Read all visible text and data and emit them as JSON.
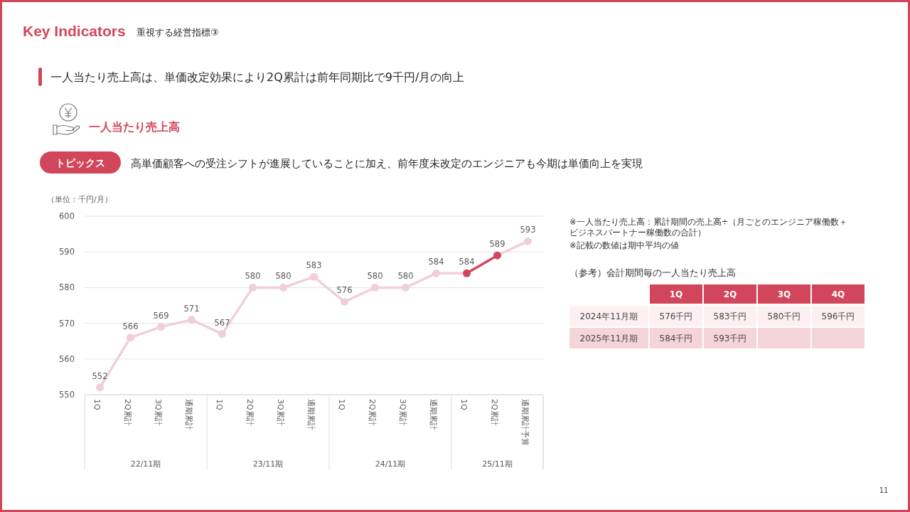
{
  "chart_data": [
    {
      "type": "line",
      "title": "一人当たり売上高",
      "ylabel": "（単位：千円/月）",
      "categories": [
        "1Q",
        "2Q累計",
        "3Q累計",
        "通期累計",
        "1Q",
        "2Q累計",
        "3Q累計",
        "通期累計",
        "1Q",
        "2Q累計",
        "3Q累計",
        "通期累計",
        "1Q",
        "2Q累計",
        "通期累計予算"
      ],
      "series": [
        {
          "color": "#f0cfd8",
          "colors": [
            "#f0cfd8",
            "#f0cfd8",
            "#f0cfd8",
            "#f0cfd8",
            "#f0cfd8",
            "#f0cfd8",
            "#f0cfd8",
            "#f0cfd8",
            "#f0cfd8",
            "#f0cfd8",
            "#f0cfd8",
            "#f0cfd8",
            "#d2465b",
            "#d2465b",
            "#f0cfd8"
          ],
          "values": [
            552,
            566,
            569,
            571,
            567,
            580,
            580,
            583,
            576,
            580,
            580,
            584,
            584,
            589,
            593
          ]
        }
      ],
      "ylim": [
        550,
        600
      ],
      "yticks": [
        550,
        560,
        570,
        580,
        590,
        600
      ],
      "grid": "y",
      "marker": "circle",
      "line_style": "solid",
      "data_labels": true,
      "annotations": [
        "Key Indicators",
        "重視する経営指標③",
        "一人当たり売上高は、単価改定効果により2Q累計は前年同期比で9千円/月の向上",
        "トピックス",
        "高単価顧客への受注シフトが進展していることに加え、前年度未改定のエンジニアも今期は単価向上を実現",
        "※一人当たり売上高：累計期間の売上高÷（月ごとのエンジニア稼働数＋ビジネスパートナー稼働数の合計）",
        "※記載の数値は期中平均の値",
        "11",
        "22/11期",
        "23/11期",
        "24/11期",
        "25/11期"
      ]
    },
    {
      "type": "heatmap",
      "title": "（参考）会計期間毎の一人当たり売上高",
      "categories": [
        "1Q",
        "2Q",
        "3Q",
        "4Q"
      ],
      "y_categories": [
        "2024年11月期",
        "2025年11月期"
      ],
      "cells": [
        [
          576,
          583,
          580,
          596
        ],
        [
          584,
          593,
          null,
          null
        ]
      ],
      "cell_labels": [
        [
          "576千円",
          "583千円",
          "580千円",
          "596千円"
        ],
        [
          "584千円",
          "593千円",
          null,
          null
        ]
      ]
    }
  ]
}
